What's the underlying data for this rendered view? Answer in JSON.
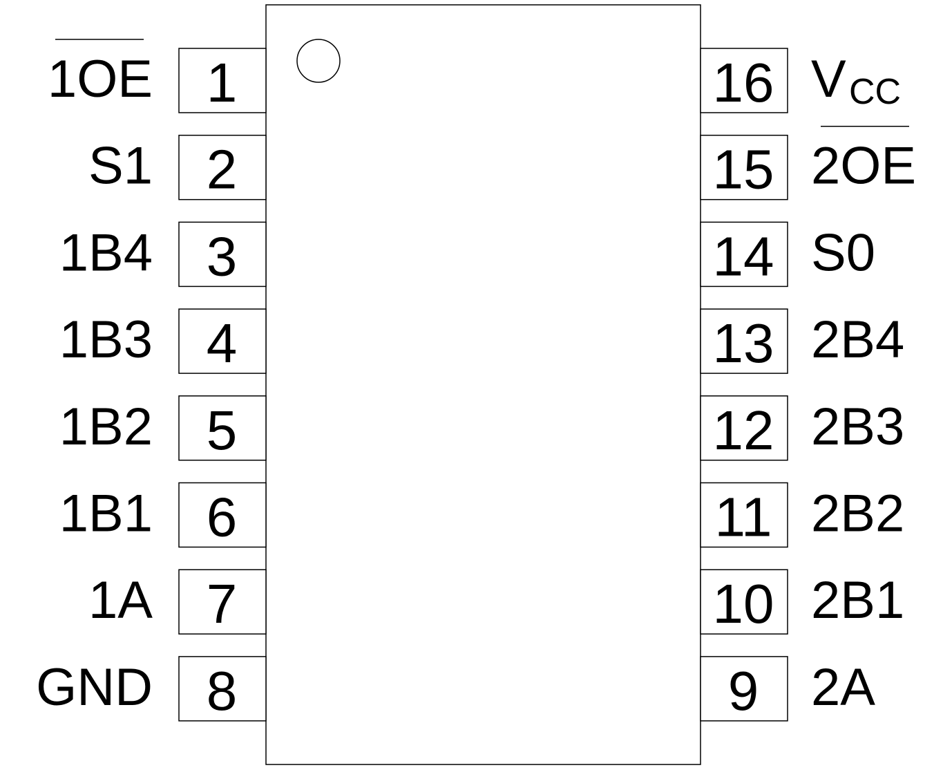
{
  "diagram": {
    "type": "ic-pinout",
    "pin1_marker": "circle",
    "left_pins": [
      {
        "number": "1",
        "name": "1OE",
        "overbar": true
      },
      {
        "number": "2",
        "name": "S1",
        "overbar": false
      },
      {
        "number": "3",
        "name": "1B4",
        "overbar": false
      },
      {
        "number": "4",
        "name": "1B3",
        "overbar": false
      },
      {
        "number": "5",
        "name": "1B2",
        "overbar": false
      },
      {
        "number": "6",
        "name": "1B1",
        "overbar": false
      },
      {
        "number": "7",
        "name": "1A",
        "overbar": false
      },
      {
        "number": "8",
        "name": "GND",
        "overbar": false
      }
    ],
    "right_pins": [
      {
        "number": "16",
        "name": "V",
        "subscript": "CC",
        "overbar": false
      },
      {
        "number": "15",
        "name": "2OE",
        "overbar": true
      },
      {
        "number": "14",
        "name": "S0",
        "overbar": false
      },
      {
        "number": "13",
        "name": "2B4",
        "overbar": false
      },
      {
        "number": "12",
        "name": "2B3",
        "overbar": false
      },
      {
        "number": "11",
        "name": "2B2",
        "overbar": false
      },
      {
        "number": "10",
        "name": "2B1",
        "overbar": false
      },
      {
        "number": "9",
        "name": "2A",
        "overbar": false
      }
    ]
  }
}
